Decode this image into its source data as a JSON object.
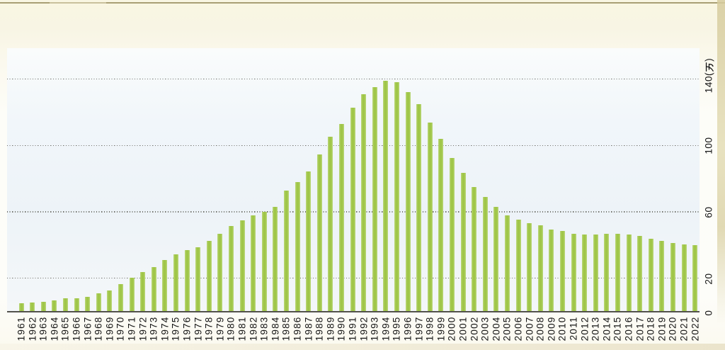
{
  "page": {
    "type": "scanned-book-page-chart",
    "colors": {
      "page_background": "#f9f6e5",
      "top_rule": "#a99f74",
      "right_page_edge": "#d6cb9d",
      "bottom_page_edge": "#e7dfc3"
    }
  },
  "chart_data": {
    "type": "bar",
    "title": "",
    "unit": "万",
    "categories": [
      "1961",
      "1962",
      "1963",
      "1964",
      "1965",
      "1966",
      "1967",
      "1968",
      "1969",
      "1970",
      "1971",
      "1972",
      "1973",
      "1974",
      "1975",
      "1976",
      "1977",
      "1978",
      "1979",
      "1980",
      "1981",
      "1982",
      "1983",
      "1984",
      "1985",
      "1986",
      "1987",
      "1988",
      "1989",
      "1990",
      "1991",
      "1992",
      "1993",
      "1994",
      "1995",
      "1996",
      "1997",
      "1998",
      "1999",
      "2000",
      "2001",
      "2002",
      "2003",
      "2004",
      "2005",
      "2006",
      "2007",
      "2008",
      "2009",
      "2010",
      "2011",
      "2012",
      "2013",
      "2014",
      "2015",
      "2016",
      "2017",
      "2018",
      "2019",
      "2020",
      "2021",
      "2022"
    ],
    "values": [
      5,
      5.5,
      6,
      7,
      8,
      8,
      9,
      11,
      13,
      16.5,
      20.5,
      24,
      27,
      31,
      34.5,
      37,
      39,
      42.5,
      47,
      51.5,
      55,
      58,
      60,
      63,
      73,
      78,
      84.5,
      94.5,
      105.5,
      113,
      123,
      131,
      135,
      139,
      138,
      132,
      125,
      114,
      104,
      92.5,
      83.5,
      75,
      69,
      63,
      58,
      55.5,
      53.5,
      52,
      49.5,
      48.5,
      47,
      46.5,
      46.5,
      47,
      47,
      46.5,
      45.5,
      44,
      42.5,
      41.5,
      40.5,
      40
    ],
    "xlabel": "",
    "ylabel": "",
    "y_axis": {
      "side": "right",
      "ylim": [
        0,
        150
      ],
      "ticks": [
        {
          "value": 0,
          "label": "0",
          "with_unit": false
        },
        {
          "value": 20,
          "label": "20",
          "with_unit": false
        },
        {
          "value": 60,
          "label": "60",
          "with_unit": false
        },
        {
          "value": 100,
          "label": "100",
          "with_unit": false
        },
        {
          "value": 140,
          "label": "140",
          "with_unit": true,
          "unit_label": "140(万)"
        }
      ],
      "gridline_values": [
        20,
        60,
        100,
        140
      ],
      "gridline_style": "dotted",
      "baseline_value": 0
    },
    "legend": null,
    "colors": {
      "bar": "#a0c649",
      "bar_edge": "#bcd87e",
      "plot_background": "#eff4f9",
      "gridline": "#70706a",
      "axis_line": "#52524c",
      "tick_label": "#141414"
    }
  }
}
